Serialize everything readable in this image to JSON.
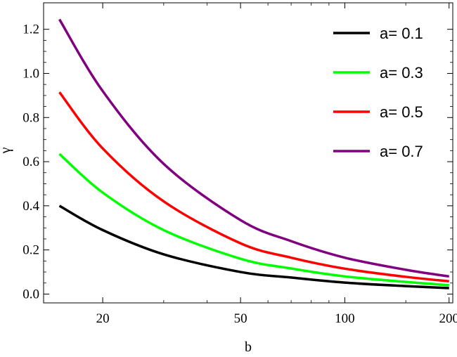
{
  "chart_data": {
    "type": "line",
    "xlabel": "b",
    "ylabel": "γ",
    "x_scale": "log",
    "xlim": [
      13.5,
      205
    ],
    "ylim": [
      -0.04,
      1.32
    ],
    "x_ticks": [
      {
        "value": 20,
        "label": "20"
      },
      {
        "value": 50,
        "label": "50"
      },
      {
        "value": 100,
        "label": "100"
      },
      {
        "value": 200,
        "label": "200"
      }
    ],
    "y_ticks": [
      {
        "value": 0.0,
        "label": "0.0"
      },
      {
        "value": 0.2,
        "label": "0.2"
      },
      {
        "value": 0.4,
        "label": "0.4"
      },
      {
        "value": 0.6,
        "label": "0.6"
      },
      {
        "value": 0.8,
        "label": "0.8"
      },
      {
        "value": 1.0,
        "label": "1.0"
      },
      {
        "value": 1.2,
        "label": "1.2"
      }
    ],
    "grid": false,
    "legend_position": "top-right",
    "x": [
      15,
      20,
      30,
      50,
      70,
      100,
      150,
      200
    ],
    "series": [
      {
        "name": "a= 0.1",
        "color": "#000000",
        "values": [
          0.4,
          0.29,
          0.18,
          0.1,
          0.075,
          0.052,
          0.036,
          0.027
        ]
      },
      {
        "name": "a= 0.3",
        "color": "#00ff00",
        "values": [
          0.635,
          0.46,
          0.29,
          0.16,
          0.116,
          0.08,
          0.055,
          0.04
        ]
      },
      {
        "name": "a= 0.5",
        "color": "#ff0000",
        "values": [
          0.915,
          0.66,
          0.42,
          0.23,
          0.165,
          0.115,
          0.078,
          0.058
        ]
      },
      {
        "name": "a= 0.7",
        "color": "#800080",
        "values": [
          1.245,
          0.92,
          0.59,
          0.335,
          0.24,
          0.165,
          0.11,
          0.08
        ]
      }
    ]
  }
}
